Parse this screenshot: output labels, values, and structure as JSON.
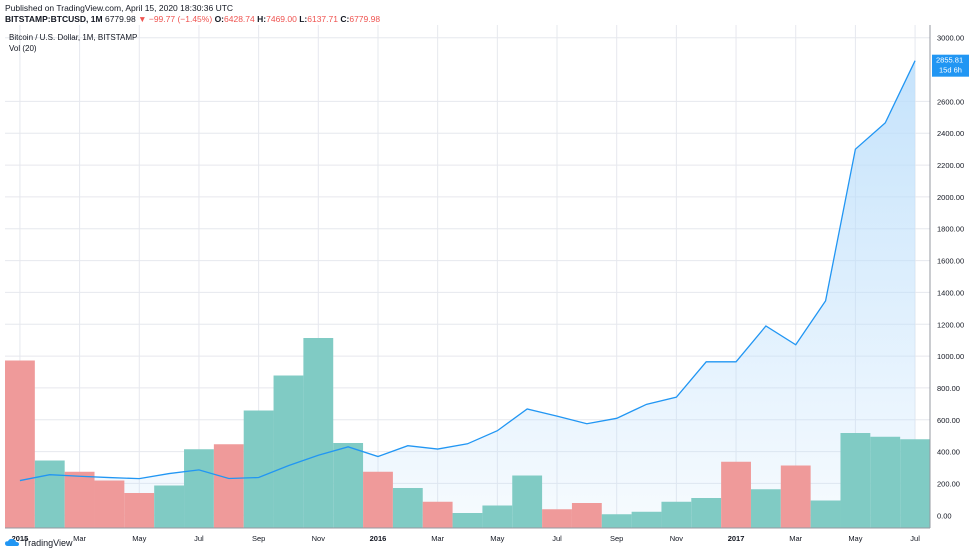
{
  "header": {
    "published": "Published on TradingView.com, April 15, 2020 18:30:36 UTC",
    "symbol": "BITSTAMP:BTCUSD, 1M",
    "last_price": "6779.98",
    "change": "▼ −99.77 (−1.45%)",
    "o_label": "O:",
    "o_value": "6428.74",
    "h_label": "H:",
    "h_value": "7469.00",
    "l_label": "L:",
    "l_value": "6137.71",
    "c_label": "C:",
    "c_value": "6779.98"
  },
  "legend": {
    "series_title": "Bitcoin / U.S. Dollar, 1M, BITSTAMP",
    "volume_title": "Vol (20)"
  },
  "price_label": {
    "value": "2855.81",
    "countdown": "15d 6h"
  },
  "footer": {
    "brand": "TradingView"
  },
  "colors": {
    "line": "#2196f3",
    "area": "#bbdefb",
    "vol_up": "#80cbc4",
    "vol_down": "#ef9a9a",
    "grid": "#e6e8ee",
    "label_bg": "#2196f3"
  },
  "chart_data": {
    "type": "area",
    "title": "Bitcoin / U.S. Dollar, 1M, BITSTAMP",
    "x": [
      "2015-01",
      "2015-02",
      "2015-03",
      "2015-04",
      "2015-05",
      "2015-06",
      "2015-07",
      "2015-08",
      "2015-09",
      "2015-10",
      "2015-11",
      "2015-12",
      "2016-01",
      "2016-02",
      "2016-03",
      "2016-04",
      "2016-05",
      "2016-06",
      "2016-07",
      "2016-08",
      "2016-09",
      "2016-10",
      "2016-11",
      "2016-12",
      "2017-01",
      "2017-02",
      "2017-03",
      "2017-04",
      "2017-05",
      "2017-06",
      "2017-07"
    ],
    "x_tick_labels": [
      "2015",
      "Mar",
      "May",
      "Jul",
      "Sep",
      "Nov",
      "2016",
      "Mar",
      "May",
      "Jul",
      "Sep",
      "Nov",
      "2017",
      "Mar",
      "May",
      "Jul"
    ],
    "x_tick_indices": [
      0,
      2,
      4,
      6,
      8,
      10,
      12,
      14,
      16,
      18,
      20,
      22,
      24,
      26,
      28,
      30
    ],
    "x_tick_bold": [
      true,
      false,
      false,
      false,
      false,
      false,
      true,
      false,
      false,
      false,
      false,
      false,
      true,
      false,
      false,
      false
    ],
    "series": [
      {
        "name": "BTCUSD close",
        "values": [
          218,
          255,
          245,
          237,
          230,
          262,
          285,
          231,
          237,
          312,
          377,
          430,
          369,
          437,
          416,
          449,
          531,
          668,
          623,
          575,
          609,
          697,
          742,
          964,
          964,
          1189,
          1071,
          1347,
          2300,
          2465,
          2855.81
        ]
      },
      {
        "name": "Vol (20)",
        "kind": "volume",
        "values": [
          670,
          270,
          225,
          190,
          140,
          170,
          315,
          335,
          470,
          610,
          760,
          340,
          225,
          160,
          105,
          60,
          90,
          210,
          75,
          100,
          55,
          65,
          105,
          120,
          265,
          155,
          250,
          110,
          380,
          365,
          355
        ],
        "direction": [
          "down",
          "up",
          "down",
          "down",
          "down",
          "up",
          "up",
          "down",
          "up",
          "up",
          "up",
          "up",
          "down",
          "up",
          "down",
          "up",
          "up",
          "up",
          "down",
          "down",
          "up",
          "up",
          "up",
          "up",
          "down",
          "up",
          "down",
          "up",
          "up",
          "up",
          "up"
        ]
      }
    ],
    "y_ticks": [
      0,
      200,
      400,
      600,
      800,
      1000,
      1200,
      1400,
      1600,
      1800,
      2000,
      2200,
      2400,
      2600,
      3000
    ],
    "y_tick_labels": [
      "0.00",
      "200.00",
      "400.00",
      "600.00",
      "800.00",
      "1000.00",
      "1200.00",
      "1400.00",
      "1600.00",
      "1800.00",
      "2000.00",
      "2200.00",
      "2400.00",
      "2600.00",
      "3000.00"
    ],
    "ylim": [
      -80,
      3080
    ],
    "xlabel": "",
    "ylabel": "",
    "grid": true
  }
}
